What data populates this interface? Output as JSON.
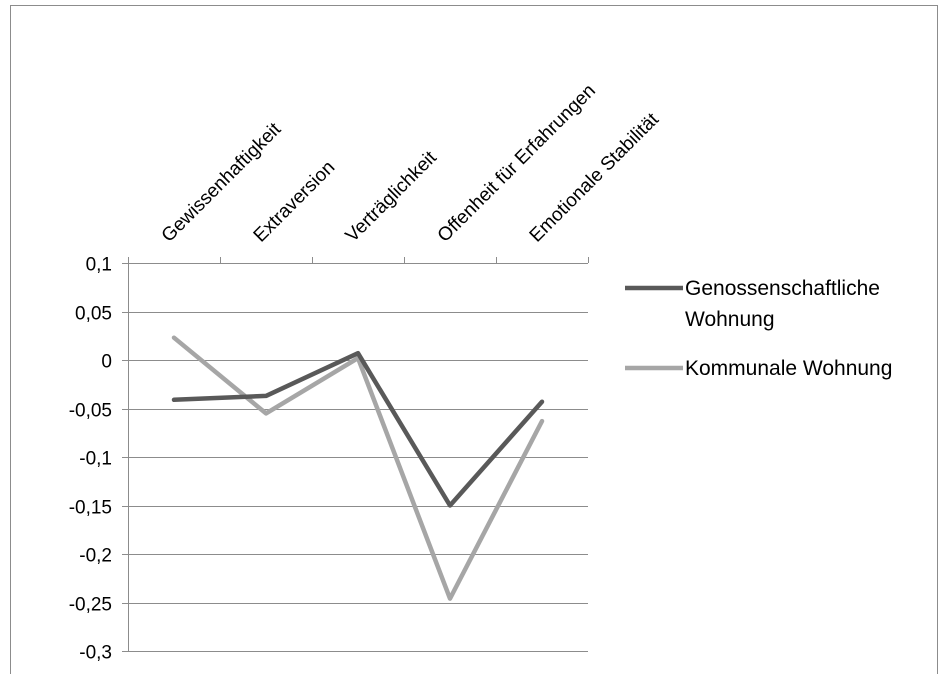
{
  "chart_data": {
    "type": "line",
    "title": "",
    "xlabel": "",
    "ylabel": "",
    "categories": [
      "Gewissenhaftigkeit",
      "Extraversion",
      "Verträglichkeit",
      "Offenheit für Erfahrungen",
      "Emotionale Stabilität"
    ],
    "series": [
      {
        "name": "Genossenschaftliche Wohnung",
        "legend_lines": [
          "Genossenschaftliche",
          "Wohnung"
        ],
        "color": "#595959",
        "values": [
          -0.041,
          -0.037,
          0.007,
          -0.15,
          -0.043
        ]
      },
      {
        "name": "Kommunale Wohnung",
        "legend_lines": [
          "Kommunale Wohnung"
        ],
        "color": "#a6a6a6",
        "values": [
          0.023,
          -0.055,
          0.002,
          -0.246,
          -0.063
        ]
      }
    ],
    "yticks": [
      "0,1",
      "0,05",
      "0",
      "-0,05",
      "-0,1",
      "-0,15",
      "-0,2",
      "-0,25",
      "-0,3"
    ],
    "ylim": [
      -0.3,
      0.1
    ],
    "ystep": 0.05,
    "grid": true,
    "legend_position": "right",
    "axis_labels_position": "top"
  }
}
